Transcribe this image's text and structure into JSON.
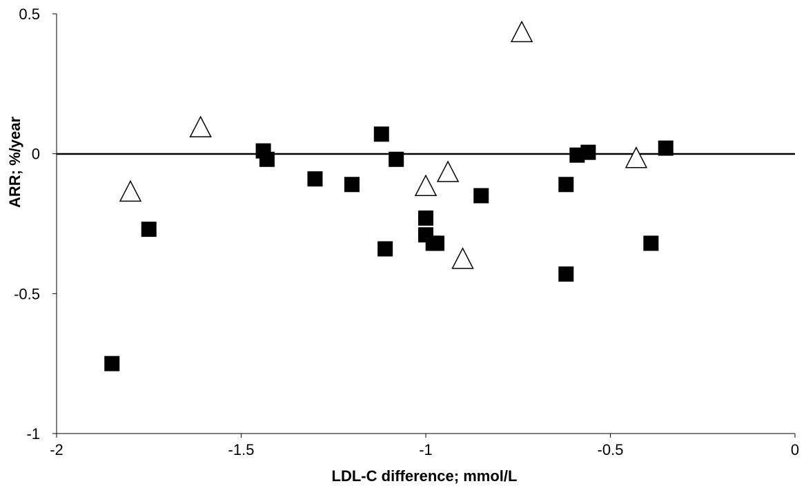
{
  "chart_data": {
    "type": "scatter",
    "title": "",
    "xlabel": "LDL-C difference; mmol/L",
    "ylabel": "ARR; %/year",
    "xlim": [
      -2,
      0
    ],
    "ylim": [
      -1,
      0.5
    ],
    "xticks": [
      -2,
      -1.5,
      -1,
      -0.5,
      0
    ],
    "xtick_labels": [
      "-2",
      "-1.5",
      "-1",
      "-0.5",
      "0"
    ],
    "yticks": [
      -1,
      -0.5,
      0,
      0.5
    ],
    "ytick_labels": [
      "-1",
      "-0.5",
      "0",
      "0.5"
    ],
    "grid": false,
    "zero_line": true,
    "colors": {
      "filled": "#000000",
      "open_stroke": "#000000",
      "open_fill": "#ffffff"
    },
    "series": [
      {
        "marker": "filled-square",
        "x": [
          -1.85,
          -1.75,
          -1.44,
          -1.43,
          -1.3,
          -1.2,
          -1.12,
          -1.11,
          -1.08,
          -1.0,
          -1.0,
          -0.98,
          -0.97,
          -0.85,
          -0.62,
          -0.62,
          -0.59,
          -0.56,
          -0.39,
          -0.35
        ],
        "y": [
          -0.75,
          -0.27,
          0.01,
          -0.02,
          -0.09,
          -0.11,
          0.07,
          -0.34,
          -0.02,
          -0.23,
          -0.29,
          -0.32,
          -0.32,
          -0.15,
          -0.11,
          -0.43,
          -0.005,
          0.005,
          -0.32,
          0.02
        ]
      },
      {
        "marker": "open-triangle",
        "x": [
          -1.8,
          -1.61,
          -1.0,
          -0.94,
          -0.9,
          -0.74,
          -0.43
        ],
        "y": [
          -0.14,
          0.09,
          -0.12,
          -0.07,
          -0.38,
          0.43,
          -0.02
        ]
      }
    ]
  }
}
